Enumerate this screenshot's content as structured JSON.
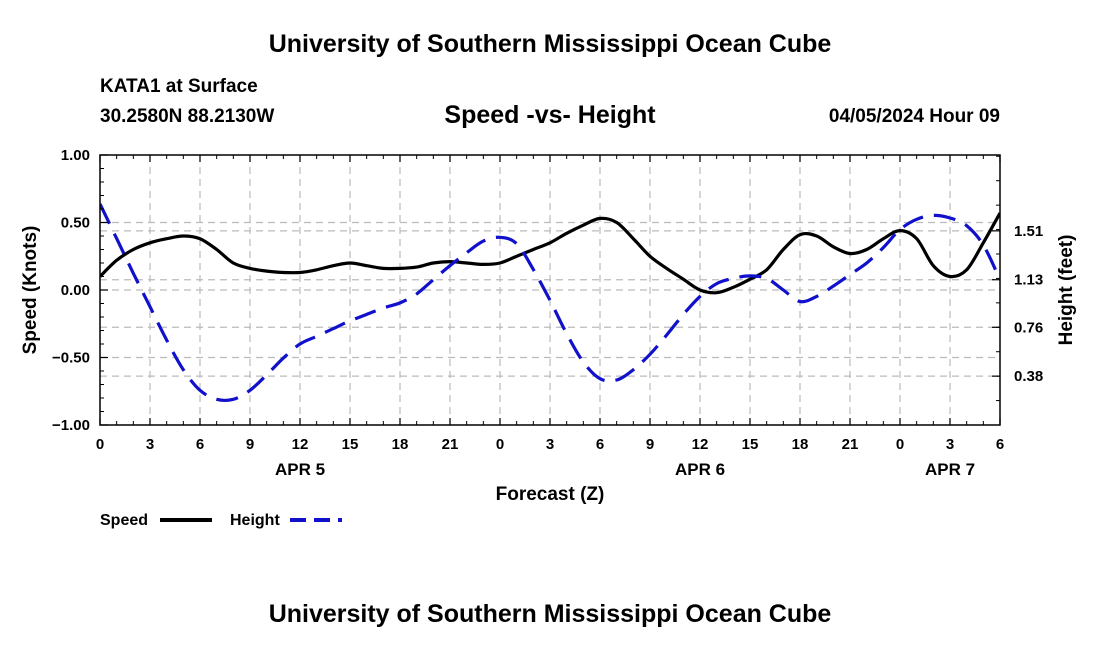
{
  "page": {
    "title_top": "University of Southern Mississippi Ocean Cube",
    "title_bottom": "University of Southern Mississippi Ocean Cube",
    "station_name": "KATA1 at Surface",
    "station_coords": "30.2580N  88.2130W",
    "datetime": "04/05/2024 Hour 09"
  },
  "colors": {
    "speed": "#000000",
    "height": "#1111cc",
    "grid": "#bbbbbb"
  },
  "chart_data": {
    "type": "line",
    "title": "Speed -vs- Height",
    "xlabel": "Forecast (Z)",
    "ylabel_left": "Speed (Knots)",
    "ylabel_right": "Height (feet)",
    "x_range": [
      0,
      54
    ],
    "x_ticks": [
      0,
      3,
      6,
      9,
      12,
      15,
      18,
      21,
      24,
      27,
      30,
      33,
      36,
      39,
      42,
      45,
      48,
      51,
      54
    ],
    "x_tick_labels": [
      "0",
      "3",
      "6",
      "9",
      "12",
      "15",
      "18",
      "21",
      "0",
      "3",
      "6",
      "9",
      "12",
      "15",
      "18",
      "21",
      "0",
      "3",
      "6"
    ],
    "date_labels": [
      {
        "x": 12,
        "label": "APR 5"
      },
      {
        "x": 36,
        "label": "APR 6"
      },
      {
        "x": 51,
        "label": "APR 7"
      }
    ],
    "y_left": {
      "range": [
        -1.0,
        1.0
      ],
      "ticks": [
        1.0,
        0.5,
        0.0,
        -0.5,
        -1.0
      ],
      "tick_labels": [
        "1.00",
        "0.50",
        "0.00",
        "−0.50",
        "−1.00"
      ]
    },
    "y_right": {
      "range": [
        0.0,
        2.1
      ],
      "ticks": [
        1.51,
        1.13,
        0.76,
        0.38
      ],
      "tick_labels": [
        "1.51",
        "1.13",
        "0.76",
        "0.38"
      ]
    },
    "series": [
      {
        "name": "Speed",
        "axis": "left",
        "style": "solid",
        "x": [
          0,
          1,
          2,
          3,
          4,
          5,
          6,
          7,
          8,
          9,
          10,
          11,
          12,
          13,
          14,
          15,
          16,
          17,
          18,
          19,
          20,
          21,
          22,
          23,
          24,
          25,
          26,
          27,
          28,
          29,
          30,
          31,
          32,
          33,
          34,
          35,
          36,
          37,
          38,
          39,
          40,
          41,
          42,
          43,
          44,
          45,
          46,
          47,
          48,
          49,
          50,
          51,
          52,
          53,
          54
        ],
        "values": [
          0.1,
          0.22,
          0.3,
          0.35,
          0.38,
          0.4,
          0.38,
          0.3,
          0.2,
          0.16,
          0.14,
          0.13,
          0.13,
          0.15,
          0.18,
          0.2,
          0.18,
          0.16,
          0.16,
          0.17,
          0.2,
          0.21,
          0.2,
          0.19,
          0.2,
          0.25,
          0.3,
          0.35,
          0.42,
          0.48,
          0.53,
          0.5,
          0.38,
          0.25,
          0.16,
          0.08,
          0.0,
          -0.02,
          0.02,
          0.08,
          0.15,
          0.3,
          0.41,
          0.4,
          0.32,
          0.27,
          0.3,
          0.38,
          0.44,
          0.38,
          0.18,
          0.1,
          0.15,
          0.35,
          0.57
        ]
      },
      {
        "name": "Height",
        "axis": "right",
        "style": "dashed",
        "x": [
          0,
          1,
          2,
          3,
          4,
          5,
          6,
          7,
          8,
          9,
          10,
          11,
          12,
          13,
          14,
          15,
          16,
          17,
          18,
          19,
          20,
          21,
          22,
          23,
          24,
          25,
          26,
          27,
          28,
          29,
          30,
          31,
          32,
          33,
          34,
          35,
          36,
          37,
          38,
          39,
          40,
          41,
          42,
          43,
          44,
          45,
          46,
          47,
          48,
          49,
          50,
          51,
          52,
          53,
          54
        ],
        "values": [
          1.72,
          1.45,
          1.18,
          0.92,
          0.66,
          0.43,
          0.27,
          0.2,
          0.2,
          0.27,
          0.39,
          0.52,
          0.63,
          0.69,
          0.75,
          0.81,
          0.86,
          0.91,
          0.95,
          1.02,
          1.13,
          1.24,
          1.34,
          1.43,
          1.46,
          1.41,
          1.21,
          0.97,
          0.71,
          0.49,
          0.36,
          0.35,
          0.43,
          0.55,
          0.7,
          0.86,
          1.0,
          1.1,
          1.14,
          1.16,
          1.14,
          1.05,
          0.96,
          1.0,
          1.08,
          1.17,
          1.26,
          1.38,
          1.52,
          1.6,
          1.63,
          1.61,
          1.55,
          1.4,
          1.13
        ]
      }
    ],
    "legend": [
      "Speed",
      "Height"
    ],
    "grid": true
  }
}
